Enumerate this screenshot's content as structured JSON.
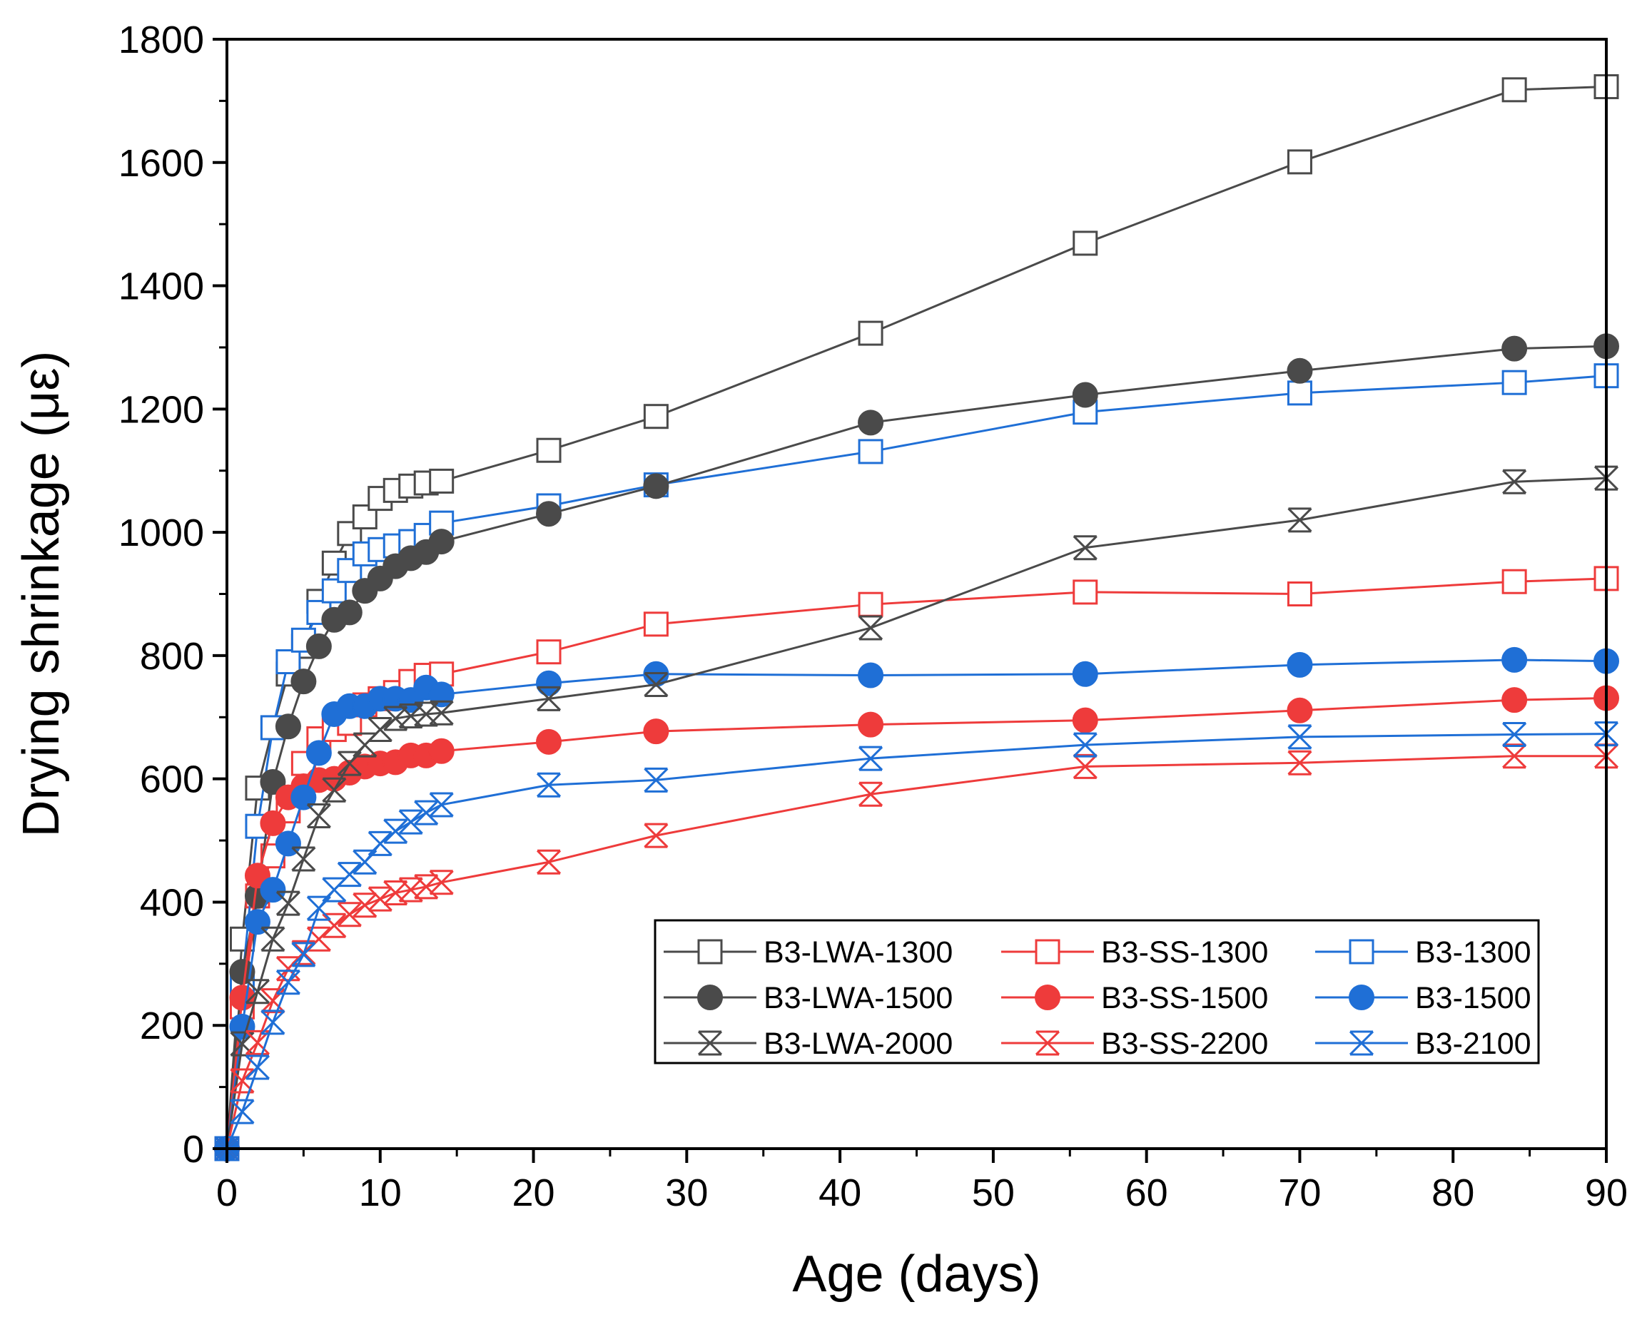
{
  "chart_data": {
    "type": "line",
    "title": "",
    "xlabel": "Age (days)",
    "ylabel": "Drying shrinkage (με)",
    "xlim": [
      0,
      90
    ],
    "ylim": [
      0,
      1800
    ],
    "xticks": [
      0,
      10,
      20,
      30,
      40,
      50,
      60,
      70,
      80,
      90
    ],
    "yticks": [
      0,
      200,
      400,
      600,
      800,
      1000,
      1200,
      1400,
      1600,
      1800
    ],
    "grid": false,
    "legend_position": "bottom-right",
    "x": [
      0,
      1,
      2,
      3,
      4,
      5,
      6,
      7,
      8,
      9,
      10,
      11,
      12,
      13,
      14,
      21,
      28,
      42,
      56,
      70,
      84,
      90
    ],
    "series": [
      {
        "name": "B3-LWA-1300",
        "color": "#4a4a4a",
        "marker": "square-open",
        "values": [
          0,
          340,
          585,
          683,
          770,
          815,
          888,
          950,
          998,
          1025,
          1055,
          1068,
          1075,
          1080,
          1083,
          1133,
          1188,
          1323,
          1469,
          1601,
          1718,
          1723
        ]
      },
      {
        "name": "B3-SS-1300",
        "color": "#ee3b3b",
        "marker": "square-open",
        "values": [
          0,
          230,
          410,
          475,
          548,
          625,
          665,
          680,
          690,
          720,
          730,
          740,
          758,
          768,
          770,
          806,
          851,
          883,
          903,
          900,
          920,
          925
        ]
      },
      {
        "name": "B3-1300",
        "color": "#1f6fd6",
        "marker": "square-open",
        "values": [
          0,
          270,
          523,
          683,
          790,
          825,
          870,
          905,
          938,
          965,
          972,
          978,
          985,
          995,
          1015,
          1043,
          1077,
          1131,
          1195,
          1226,
          1243,
          1254
        ]
      },
      {
        "name": "B3-LWA-1500",
        "color": "#4a4a4a",
        "marker": "circle-filled",
        "values": [
          0,
          287,
          410,
          595,
          685,
          758,
          815,
          858,
          870,
          905,
          925,
          945,
          958,
          968,
          985,
          1030,
          1075,
          1178,
          1223,
          1262,
          1298,
          1302
        ]
      },
      {
        "name": "B3-SS-1500",
        "color": "#ee3b3b",
        "marker": "circle-filled",
        "values": [
          0,
          245,
          443,
          528,
          570,
          588,
          598,
          600,
          610,
          620,
          625,
          627,
          638,
          638,
          645,
          660,
          677,
          688,
          695,
          711,
          728,
          731
        ]
      },
      {
        "name": "B3-1500",
        "color": "#1f6fd6",
        "marker": "circle-filled",
        "values": [
          0,
          198,
          368,
          420,
          495,
          570,
          642,
          705,
          718,
          718,
          730,
          730,
          728,
          748,
          737,
          755,
          770,
          768,
          770,
          785,
          793,
          791
        ]
      },
      {
        "name": "B3-LWA-2000",
        "color": "#4a4a4a",
        "marker": "cross-x",
        "values": [
          0,
          170,
          255,
          340,
          398,
          470,
          540,
          582,
          625,
          655,
          680,
          698,
          702,
          705,
          707,
          730,
          753,
          845,
          975,
          1020,
          1082,
          1088
        ]
      },
      {
        "name": "B3-SS-2200",
        "color": "#ee3b3b",
        "marker": "cross-x",
        "values": [
          0,
          110,
          172,
          240,
          292,
          318,
          340,
          362,
          380,
          395,
          405,
          415,
          420,
          425,
          432,
          465,
          508,
          575,
          620,
          626,
          637,
          637
        ]
      },
      {
        "name": "B3-2100",
        "color": "#1f6fd6",
        "marker": "cross-x",
        "values": [
          0,
          60,
          132,
          205,
          270,
          315,
          390,
          420,
          445,
          465,
          495,
          515,
          530,
          545,
          558,
          590,
          598,
          633,
          655,
          668,
          672,
          673
        ]
      }
    ]
  }
}
